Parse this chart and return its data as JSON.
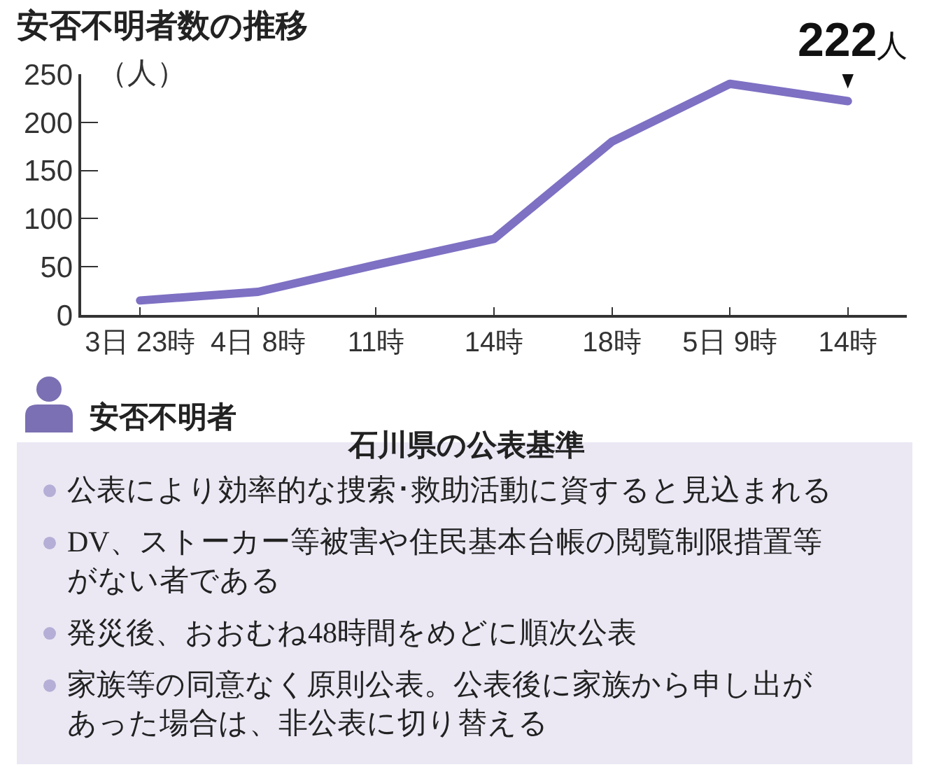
{
  "chart_data": [
    {
      "type": "line",
      "title": "安否不明者数の推移",
      "ylabel": "（人）",
      "categories": [
        "3日 23時",
        "4日 8時",
        "11時",
        "14時",
        "18時",
        "5日 9時",
        "14時"
      ],
      "values": [
        15,
        24,
        52,
        79,
        180,
        240,
        222
      ],
      "value_labels": [
        null,
        null,
        null,
        null,
        null,
        null,
        "222人"
      ],
      "color": "#7e70c3",
      "ylim": [
        0,
        250
      ],
      "yticks": [
        0,
        50,
        100,
        150,
        200,
        250
      ],
      "grid": false,
      "marker": "none",
      "line_style": "solid"
    },
    {
      "type": "other",
      "title": "安否不明者",
      "subtitle": "石川県の公表基準",
      "annotations": [
        "公表により効率的な捜索･救助活動に資すると見込まれる",
        "DV、ストーカー等被害や住民基本台帳の閲覧制限措置等がない者である",
        "発災後、おおむね48時間をめどに順次公表",
        "家族等の同意なく原則公表。公表後に家族から申し出があった場合は、非公表に切り替える"
      ]
    }
  ]
}
